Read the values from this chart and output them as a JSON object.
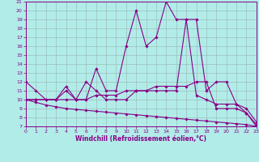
{
  "xlabel": "Windchill (Refroidissement éolien,°C)",
  "bg_color": "#b2ece8",
  "grid_color": "#9bbfbc",
  "line_color": "#880088",
  "xlim": [
    0,
    23
  ],
  "ylim": [
    7,
    21
  ],
  "yticks": [
    7,
    8,
    9,
    10,
    11,
    12,
    13,
    14,
    15,
    16,
    17,
    18,
    19,
    20,
    21
  ],
  "xticks": [
    0,
    1,
    2,
    3,
    4,
    5,
    6,
    7,
    8,
    9,
    10,
    11,
    12,
    13,
    14,
    15,
    16,
    17,
    18,
    19,
    20,
    21,
    22,
    23
  ],
  "series": [
    {
      "x": [
        0,
        1,
        2,
        3,
        4,
        5,
        6,
        7,
        8,
        9,
        10,
        11,
        12,
        13,
        14,
        15,
        16,
        17,
        18,
        19,
        20,
        21,
        22,
        23
      ],
      "y": [
        12,
        11,
        10,
        10,
        11.5,
        10,
        10,
        13.5,
        11,
        11,
        16,
        20,
        16,
        17,
        21,
        19,
        19,
        19,
        11,
        12,
        12,
        9.5,
        8.5,
        7
      ]
    },
    {
      "x": [
        0,
        1,
        2,
        3,
        4,
        5,
        6,
        7,
        8,
        9,
        10,
        11,
        12,
        13,
        14,
        15,
        16,
        17,
        18,
        19,
        20,
        21,
        22,
        23
      ],
      "y": [
        10,
        10,
        10,
        10,
        11,
        10,
        12,
        11,
        10,
        10,
        10,
        11,
        11,
        11,
        11,
        11,
        19,
        10.5,
        10,
        9.5,
        9.5,
        9.5,
        9,
        7.5
      ]
    },
    {
      "x": [
        0,
        1,
        2,
        3,
        4,
        5,
        6,
        7,
        8,
        9,
        10,
        11,
        12,
        13,
        14,
        15,
        16,
        17,
        18,
        19,
        20,
        21,
        22,
        23
      ],
      "y": [
        10,
        10,
        10,
        10,
        10,
        10,
        10,
        10.5,
        10.5,
        10.5,
        11,
        11,
        11,
        11.5,
        11.5,
        11.5,
        11.5,
        12,
        12,
        9,
        9,
        9,
        8.5,
        7.2
      ]
    },
    {
      "x": [
        0,
        1,
        2,
        3,
        4,
        5,
        6,
        7,
        8,
        9,
        10,
        11,
        12,
        13,
        14,
        15,
        16,
        17,
        18,
        19,
        20,
        21,
        22,
        23
      ],
      "y": [
        10,
        9.7,
        9.4,
        9.2,
        9.0,
        8.9,
        8.8,
        8.7,
        8.6,
        8.5,
        8.4,
        8.3,
        8.2,
        8.1,
        8.0,
        7.9,
        7.8,
        7.7,
        7.6,
        7.5,
        7.4,
        7.3,
        7.2,
        7.0
      ]
    }
  ]
}
